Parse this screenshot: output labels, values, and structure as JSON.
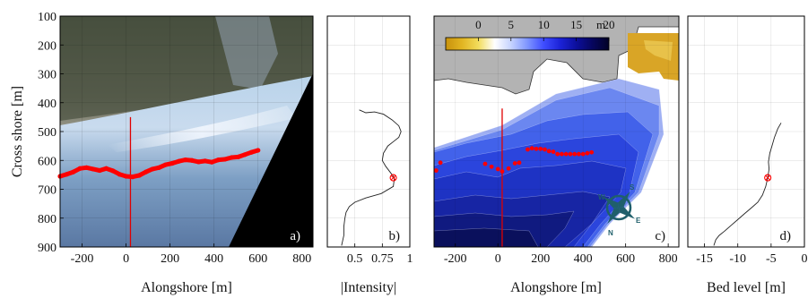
{
  "colors": {
    "transect": "#e00000",
    "marker": "#ff0000",
    "land": "#b3b3b3",
    "compass": "#1f5f6b",
    "bathy_levels": [
      "#c9d2f5",
      "#9fb0f3",
      "#6b87f0",
      "#4262ea",
      "#2b45dd",
      "#1e33c4",
      "#1725a4",
      "#101a80",
      "#0a105c",
      "#060a3f"
    ],
    "colorbar": [
      "#c8920c",
      "#e2b522",
      "#f2dc5c",
      "#ffffff",
      "#c6d3ff",
      "#7f96ff",
      "#3f4dff",
      "#1c23d8",
      "#0c0f9c",
      "#06065d",
      "#020226"
    ]
  },
  "chart_data": [
    {
      "type": "image",
      "panel_label": "a)",
      "xlabel": "Alongshore [m]",
      "ylabel": "Cross shore [m]",
      "xlim": [
        -300,
        850
      ],
      "ylim": [
        900,
        100
      ],
      "xticks": [
        -200,
        0,
        200,
        400,
        600,
        800
      ],
      "yticks": [
        100,
        200,
        300,
        400,
        500,
        600,
        700,
        800,
        900
      ],
      "grid": true,
      "transect_x": 20,
      "transect_y": [
        450,
        900
      ],
      "shoreline": {
        "x": [
          -300,
          -270,
          -240,
          -210,
          -180,
          -150,
          -120,
          -90,
          -60,
          -30,
          0,
          30,
          60,
          90,
          120,
          150,
          180,
          210,
          240,
          270,
          300,
          330,
          360,
          390,
          420,
          450,
          480,
          510,
          540,
          570,
          600
        ],
        "y": [
          655,
          648,
          640,
          628,
          625,
          630,
          635,
          628,
          636,
          648,
          655,
          657,
          652,
          640,
          630,
          625,
          615,
          610,
          603,
          598,
          600,
          605,
          602,
          606,
          598,
          596,
          590,
          588,
          580,
          572,
          565
        ]
      }
    },
    {
      "type": "line",
      "panel_label": "b)",
      "xlabel": "|Intensity|",
      "xlim": [
        0.25,
        1.0
      ],
      "ylim": [
        900,
        100
      ],
      "xticks": [
        0.5,
        0.75,
        1
      ],
      "xtick_labels": [
        "0.5",
        "0.75",
        "1"
      ],
      "grid": true,
      "series": [
        {
          "x": [
            0.54,
            0.6,
            0.68,
            0.76,
            0.84,
            0.9,
            0.92,
            0.9,
            0.85,
            0.8,
            0.76,
            0.75,
            0.78,
            0.82,
            0.86,
            0.85,
            0.74,
            0.6,
            0.5,
            0.45,
            0.42,
            0.41,
            0.4,
            0.4,
            0.38
          ],
          "y": [
            425,
            435,
            432,
            440,
            460,
            480,
            500,
            520,
            535,
            550,
            575,
            600,
            620,
            640,
            660,
            690,
            715,
            730,
            745,
            760,
            780,
            800,
            830,
            860,
            895
          ]
        }
      ],
      "marker": {
        "x": 0.85,
        "y": 660
      }
    },
    {
      "type": "contour",
      "panel_label": "c)",
      "xlabel": "Alongshore [m]",
      "xlim": [
        -300,
        850
      ],
      "ylim": [
        900,
        100
      ],
      "xticks": [
        -200,
        0,
        200,
        400,
        600,
        800
      ],
      "grid": true,
      "colorbar": {
        "ticks": [
          0,
          5,
          10,
          15,
          20
        ],
        "unit": "m",
        "range": [
          -5,
          20
        ]
      },
      "transect_x": 20,
      "transect_y": [
        420,
        900
      ],
      "points": {
        "x": [
          -290,
          -270,
          -60,
          -30,
          0,
          20,
          50,
          80,
          100,
          140,
          160,
          180,
          200,
          220,
          240,
          260,
          280,
          300,
          320,
          340,
          360,
          380,
          400,
          420,
          440
        ],
        "y": [
          635,
          608,
          612,
          622,
          630,
          638,
          628,
          610,
          608,
          562,
          558,
          560,
          560,
          562,
          568,
          570,
          578,
          578,
          578,
          578,
          578,
          578,
          578,
          575,
          572
        ]
      },
      "compass": {
        "letters": [
          "N",
          "E",
          "S",
          "W"
        ]
      }
    },
    {
      "type": "line",
      "panel_label": "d)",
      "xlabel": "Bed level [m]",
      "xlim": [
        -17.5,
        0
      ],
      "ylim": [
        900,
        100
      ],
      "xticks": [
        -15,
        -10,
        -5,
        0
      ],
      "grid": true,
      "series": [
        {
          "x": [
            -3.5,
            -4.0,
            -4.5,
            -4.8,
            -5.2,
            -5.4,
            -5.3,
            -5.5,
            -5.8,
            -6.3,
            -7.0,
            -8.0,
            -9.0,
            -10.0,
            -11.0,
            -12.0,
            -12.8,
            -13.3,
            -13.6
          ],
          "y": [
            470,
            490,
            520,
            545,
            575,
            605,
            630,
            660,
            690,
            720,
            745,
            765,
            785,
            805,
            825,
            845,
            860,
            875,
            895
          ]
        }
      ],
      "marker": {
        "x": -5.5,
        "y": 660
      }
    }
  ]
}
